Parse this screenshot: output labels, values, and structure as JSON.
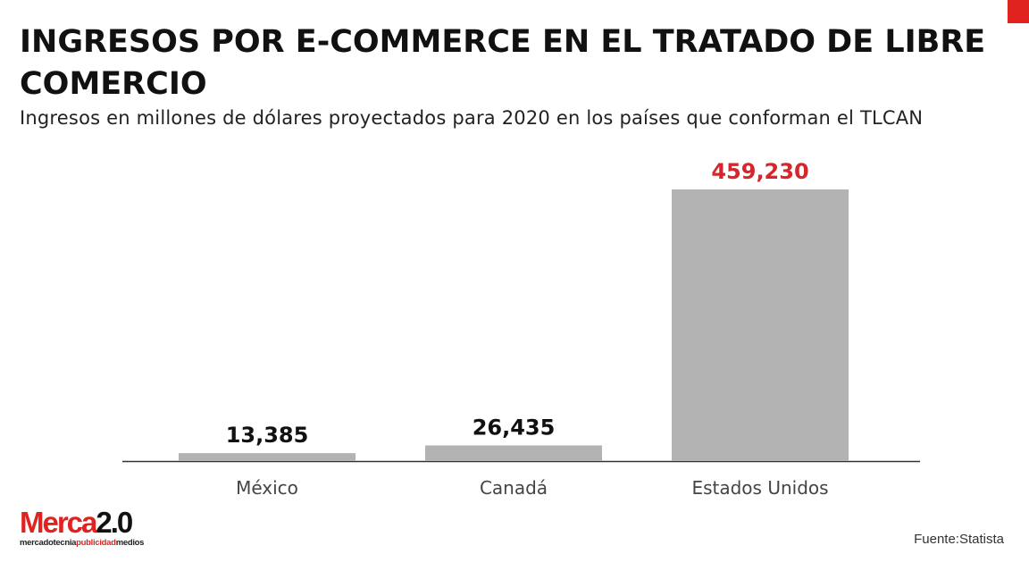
{
  "title": "INGRESOS POR E-COMMERCE EN EL TRATADO DE LIBRE COMERCIO",
  "subtitle": "Ingresos en millones de dólares proyectados para 2020 en los países que conforman el TLCAN",
  "source": "Fuente:Statista",
  "logo": {
    "main": "Merca",
    "version": "2.0",
    "tagline_a": "mercadotecnia",
    "tagline_b": "publicidad",
    "tagline_c": "medios"
  },
  "colors": {
    "bar": "#b3b3b3",
    "highlight_label": "#d7262b",
    "label": "#111111",
    "accent": "#e0231f"
  },
  "chart_data": {
    "type": "bar",
    "categories": [
      "México",
      "Canadá",
      "Estados Unidos"
    ],
    "values": [
      13385,
      26435,
      459230
    ],
    "data_labels": [
      "13,385",
      "26,435",
      "459,230"
    ],
    "highlighted": [
      false,
      false,
      true
    ],
    "ylim": [
      0,
      459230
    ],
    "grid": false,
    "legend": "none"
  }
}
